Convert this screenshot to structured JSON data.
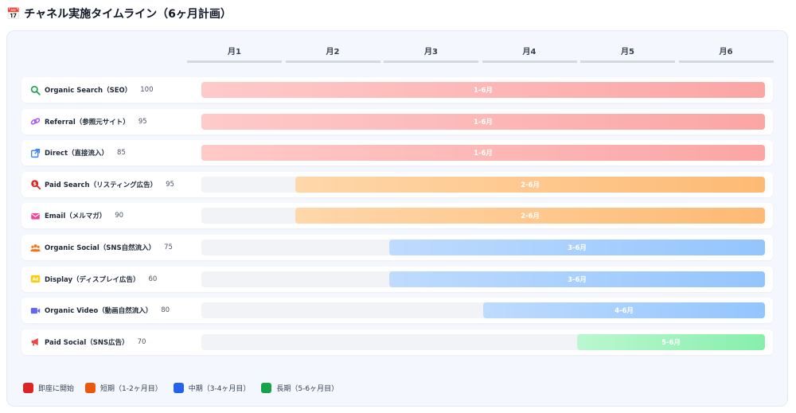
{
  "title": "📅 チャネル実施タイムライン（6ヶ月計画）",
  "months": [
    "月1",
    "月2",
    "月3",
    "月4",
    "月5",
    "月6"
  ],
  "colors": {
    "immediate": "#fca5a5",
    "short": "#fdba74",
    "mid": "#93c5fd",
    "long": "#86efac"
  },
  "rows": [
    {
      "icon": "search-icon",
      "name": "Organic Search（SEO）",
      "score": "100",
      "range": "1-6月",
      "start_month": 1,
      "end_month": 6,
      "phase": "immediate"
    },
    {
      "icon": "link-icon",
      "name": "Referral（参照元サイト）",
      "score": "95",
      "range": "1-6月",
      "start_month": 1,
      "end_month": 6,
      "phase": "immediate"
    },
    {
      "icon": "external-link-icon",
      "name": "Direct（直接流入）",
      "score": "85",
      "range": "1-6月",
      "start_month": 1,
      "end_month": 6,
      "phase": "immediate"
    },
    {
      "icon": "paid-search-icon",
      "name": "Paid Search（リスティング広告）",
      "score": "95",
      "range": "2-6月",
      "start_month": 2,
      "end_month": 6,
      "phase": "short"
    },
    {
      "icon": "mail-icon",
      "name": "Email（メルマガ）",
      "score": "90",
      "range": "2-6月",
      "start_month": 2,
      "end_month": 6,
      "phase": "short"
    },
    {
      "icon": "users-icon",
      "name": "Organic Social（SNS自然流入）",
      "score": "75",
      "range": "3-6月",
      "start_month": 3,
      "end_month": 6,
      "phase": "mid"
    },
    {
      "icon": "ad-icon",
      "name": "Display（ディスプレイ広告）",
      "score": "60",
      "range": "3-6月",
      "start_month": 3,
      "end_month": 6,
      "phase": "mid"
    },
    {
      "icon": "video-icon",
      "name": "Organic Video（動画自然流入）",
      "score": "80",
      "range": "4-6月",
      "start_month": 4,
      "end_month": 6,
      "phase": "mid"
    },
    {
      "icon": "megaphone-icon",
      "name": "Paid Social（SNS広告）",
      "score": "70",
      "range": "5-6月",
      "start_month": 5,
      "end_month": 6,
      "phase": "long"
    }
  ],
  "legend": [
    {
      "label": "即座に開始",
      "color": "#dc2626"
    },
    {
      "label": "短期（1-2ヶ月目）",
      "color": "#ea580c"
    },
    {
      "label": "中期（3-4ヶ月目）",
      "color": "#2563eb"
    },
    {
      "label": "長期（5-6ヶ月目）",
      "color": "#16a34a"
    }
  ]
}
